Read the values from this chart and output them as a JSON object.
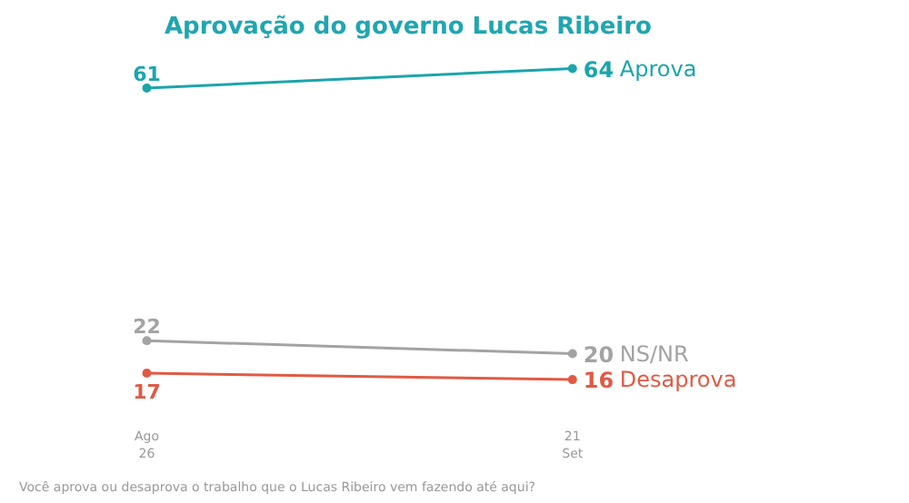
{
  "chart_data": {
    "type": "line",
    "title": "Aprovação do governo Lucas Ribeiro",
    "categories": [
      "Ago\n26",
      "21\nSet"
    ],
    "series": [
      {
        "name": "Aprova",
        "color": "#1ba5ab",
        "values": [
          61,
          64
        ]
      },
      {
        "name": "NS/NR",
        "color": "#a3a3a3",
        "values": [
          22,
          20
        ]
      },
      {
        "name": "Desaprova",
        "color": "#e05a45",
        "values": [
          17,
          16
        ]
      }
    ],
    "data_labels": true,
    "marker": "circle",
    "grid": false,
    "annotations": [
      "Você aprova ou desaprova o trabalho que o Lucas Ribeiro vem fazendo até aqui?"
    ]
  }
}
